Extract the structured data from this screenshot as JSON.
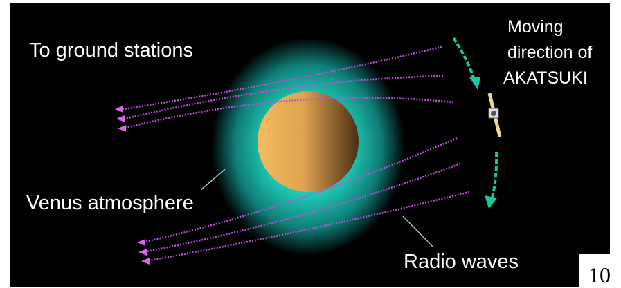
{
  "labels": {
    "ground": "To ground stations",
    "moving": [
      "Moving",
      "direction of",
      "AKATSUKI"
    ],
    "atmosphere": "Venus atmosphere",
    "radio": "Radio waves"
  },
  "page_number": "10"
}
